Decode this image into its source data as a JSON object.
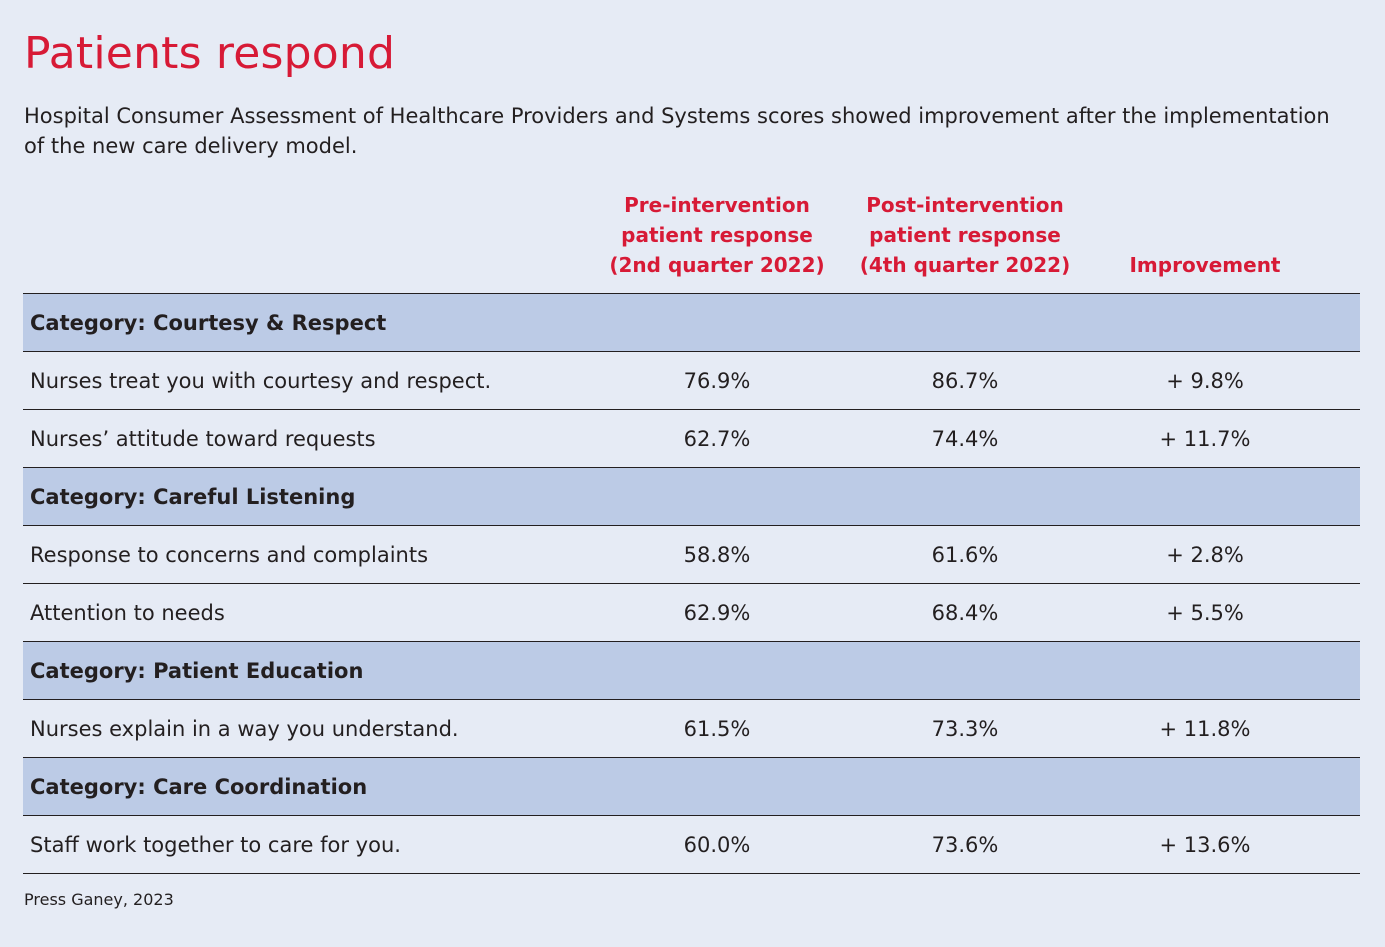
{
  "title": "Patients respond",
  "subtitle": "Hospital Consumer Assessment of Healthcare Providers and Systems scores showed improvement after the implementation of the new care delivery model.",
  "columns": {
    "pre": [
      "Pre-intervention",
      "patient response",
      "(2nd quarter 2022)"
    ],
    "post": [
      "Post-intervention",
      "patient response",
      "(4th quarter 2022)"
    ],
    "improvement": "Improvement"
  },
  "table": {
    "courtesy": {
      "category": "Category: Courtesy & Respect",
      "rows": [
        {
          "label": "Nurses treat you with courtesy and respect.",
          "pre": "76.9%",
          "post": "86.7%",
          "improvement": "+ 9.8%"
        },
        {
          "label": "Nurses’ attitude toward requests",
          "pre": "62.7%",
          "post": "74.4%",
          "improvement": "+ 11.7%"
        }
      ]
    },
    "listening": {
      "category": "Category: Careful Listening",
      "rows": [
        {
          "label": "Response to concerns and complaints",
          "pre": "58.8%",
          "post": "61.6%",
          "improvement": "+ 2.8%"
        },
        {
          "label": "Attention to needs",
          "pre": "62.9%",
          "post": "68.4%",
          "improvement": "+ 5.5%"
        }
      ]
    },
    "education": {
      "category": "Category: Patient Education",
      "rows": [
        {
          "label": "Nurses explain in a way you understand.",
          "pre": "61.5%",
          "post": "73.3%",
          "improvement": "+ 11.8%"
        }
      ]
    },
    "coordination": {
      "category": "Category: Care Coordination",
      "rows": [
        {
          "label": "Staff work together to care for you.",
          "pre": "60.0%",
          "post": "73.6%",
          "improvement": "+ 13.6%"
        }
      ]
    }
  },
  "source": "Press Ganey, 2023",
  "colors": {
    "accent": "#d71a36",
    "background": "#e6ebf5",
    "category_band": "#bccbe6",
    "text": "#231f20"
  }
}
